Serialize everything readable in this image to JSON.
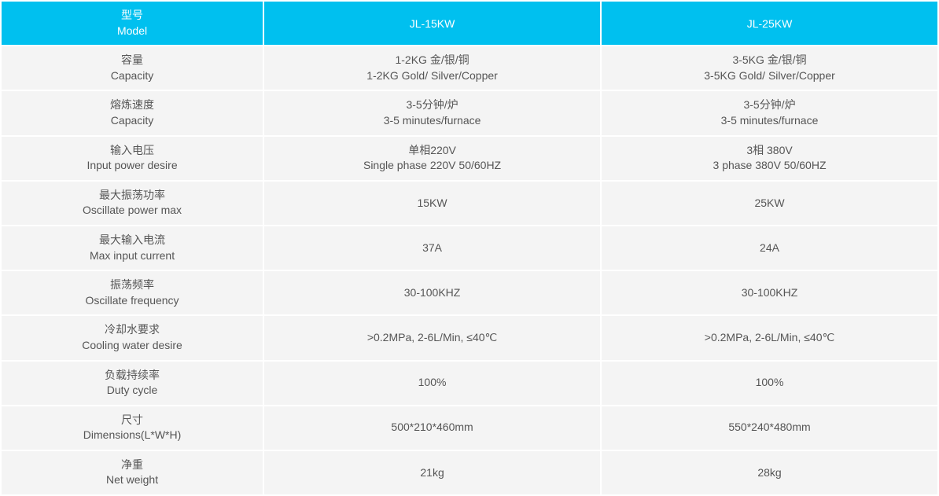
{
  "table": {
    "header_bg": "#00c0ef",
    "header_fg": "#ffffff",
    "cell_bg": "#f4f4f4",
    "cell_fg": "#555555",
    "border_spacing": 2,
    "font_size": 14,
    "columns": [
      {
        "zh": "型号",
        "en": "Model"
      },
      {
        "label": "JL-15KW"
      },
      {
        "label": "JL-25KW"
      }
    ],
    "rows": [
      {
        "label_zh": "容量",
        "label_en": "Capacity",
        "col1_zh": "1-2KG 金/银/铜",
        "col1_en": "1-2KG Gold/ Silver/Copper",
        "col2_zh": "3-5KG 金/银/铜",
        "col2_en": "3-5KG Gold/ Silver/Copper"
      },
      {
        "label_zh": "熔炼速度",
        "label_en": "Capacity",
        "col1_zh": "3-5分钟/炉",
        "col1_en": "3-5 minutes/furnace",
        "col2_zh": "3-5分钟/炉",
        "col2_en": "3-5 minutes/furnace"
      },
      {
        "label_zh": "输入电压",
        "label_en": "Input power desire",
        "col1_zh": "单相220V",
        "col1_en": "Single phase 220V 50/60HZ",
        "col2_zh": "3相 380V",
        "col2_en": "3 phase 380V 50/60HZ"
      },
      {
        "label_zh": "最大振荡功率",
        "label_en": "Oscillate power max",
        "col1": "15KW",
        "col2": "25KW"
      },
      {
        "label_zh": "最大输入电流",
        "label_en": "Max input current",
        "col1": "37A",
        "col2": "24A"
      },
      {
        "label_zh": "振荡频率",
        "label_en": "Oscillate frequency",
        "col1": "30-100KHZ",
        "col2": "30-100KHZ"
      },
      {
        "label_zh": "冷却水要求",
        "label_en": "Cooling water desire",
        "col1": ">0.2MPa, 2-6L/Min, ≤40℃",
        "col2": ">0.2MPa, 2-6L/Min, ≤40℃"
      },
      {
        "label_zh": "负载持续率",
        "label_en": "Duty cycle",
        "col1": "100%",
        "col2": "100%"
      },
      {
        "label_zh": "尺寸",
        "label_en": "Dimensions(L*W*H)",
        "col1": "500*210*460mm",
        "col2": "550*240*480mm"
      },
      {
        "label_zh": "净重",
        "label_en": "Net weight",
        "col1": "21kg",
        "col2": "28kg"
      }
    ]
  }
}
